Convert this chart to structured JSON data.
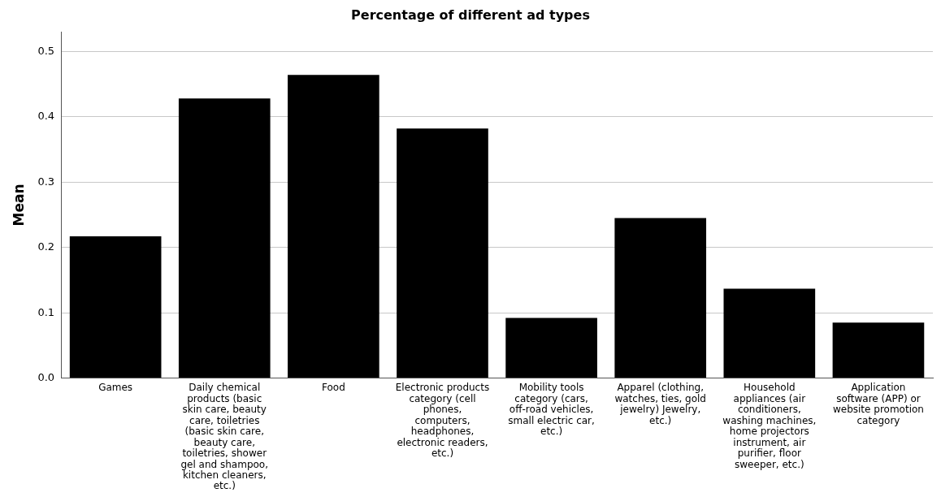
{
  "chart_data": {
    "type": "bar",
    "title": "Percentage of different ad types",
    "ylabel": "Mean",
    "categories": [
      "Games",
      "Daily chemical products (basic skin care, beauty care, toiletries (basic skin care, beauty care, toiletries, shower gel and shampoo, kitchen cleaners, etc.)",
      "Food",
      "Electronic products category (cell phones, computers, headphones, electronic readers, etc.)",
      "Mobility tools category (cars, off-road vehicles, small electric car, etc.)",
      "Apparel (clothing, watches, ties, gold jewelry) Jewelry, etc.)",
      "Household appliances (air conditioners, washing machines, home projectors instrument, air purifier, floor sweeper, etc.)",
      "Application software (APP) or website promotion category"
    ],
    "values": [
      0.217,
      0.428,
      0.464,
      0.382,
      0.092,
      0.245,
      0.137,
      0.085
    ],
    "color": "#000000",
    "ylim": [
      0,
      0.53
    ],
    "yticks": [
      {
        "value": 0,
        "label": "0.0"
      },
      0.1,
      0.2,
      0.3,
      0.4,
      0.5
    ],
    "grid": "y",
    "legend": false
  }
}
